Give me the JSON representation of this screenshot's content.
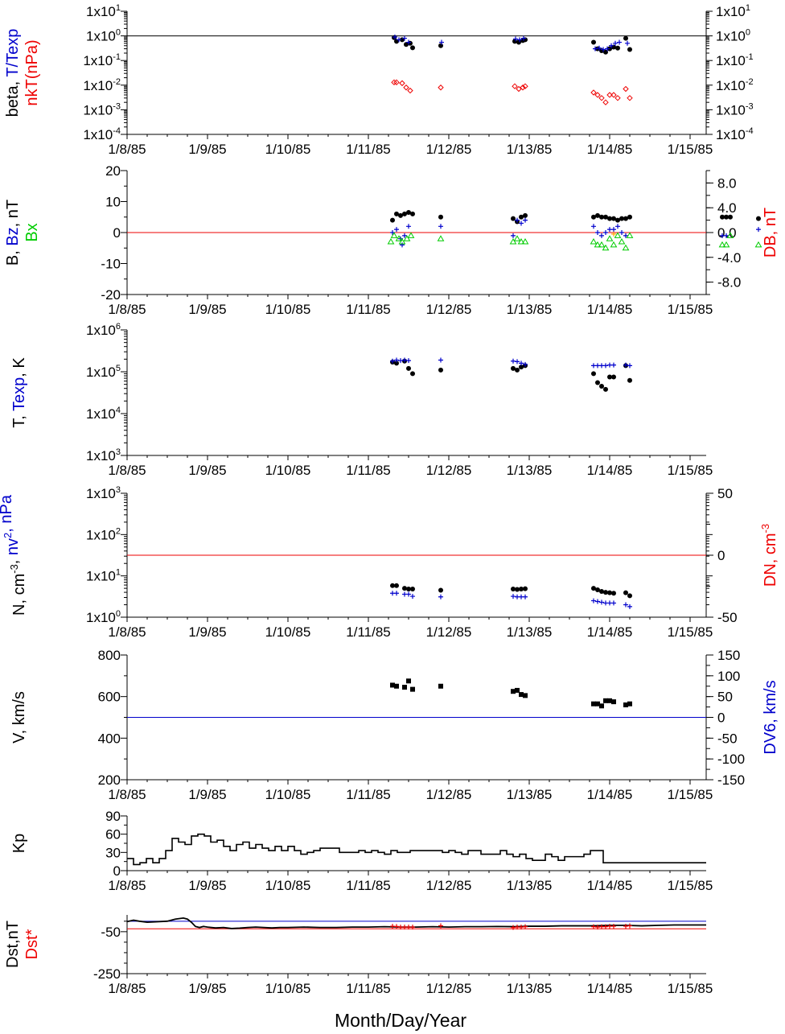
{
  "xaxis": {
    "ticks": [
      "1/8/85",
      "1/9/85",
      "1/10/85",
      "1/11/85",
      "1/12/85",
      "1/13/85",
      "1/14/85",
      "1/15/85"
    ],
    "xlabel": "Month/Day/Year",
    "range_days": [
      0,
      7.2
    ]
  },
  "colors": {
    "black": "#000000",
    "blue": "#0000cc",
    "red": "#ee0000",
    "green": "#00cc00",
    "hline_red": "#ee0000",
    "hline_blue": "#0000cc"
  },
  "chart_data": [
    {
      "id": "beta",
      "type": "scatter",
      "scale": "log",
      "ylim": [
        0.0001,
        10
      ],
      "ylabel_parts": [
        [
          "beta, ",
          "black"
        ],
        [
          "T/Texp",
          "blue"
        ]
      ],
      "ylabel2_parts": [
        [
          "nkT(nPa)",
          "red"
        ]
      ],
      "yticks": [
        "1x10^1",
        "1x10^0",
        "1x10^-1",
        "1x10^-2",
        "1x10^-3",
        "1x10^-4"
      ],
      "right_ticks": [
        "1x10^1",
        "1x10^0",
        "1x10^-1",
        "1x10^-2",
        "1x10^-3",
        "1x10^-4"
      ],
      "hline": {
        "value": 1,
        "color": "black"
      },
      "series": [
        {
          "color": "black",
          "marker": "dot",
          "x": [
            3.32,
            3.35,
            3.42,
            3.47,
            3.52,
            3.55,
            3.9,
            4.82,
            4.87,
            4.92,
            4.95,
            5.8,
            5.85,
            5.9,
            5.95,
            6.0,
            6.05,
            6.1,
            6.2,
            6.25
          ],
          "y": [
            0.85,
            0.6,
            0.7,
            0.45,
            0.5,
            0.33,
            0.4,
            0.6,
            0.55,
            0.65,
            0.7,
            0.55,
            0.3,
            0.25,
            0.22,
            0.3,
            0.35,
            0.32,
            0.8,
            0.28
          ]
        },
        {
          "color": "blue",
          "marker": "plus",
          "x": [
            3.33,
            3.38,
            3.45,
            3.5,
            3.91,
            4.83,
            4.88,
            4.93,
            5.82,
            5.87,
            5.92,
            5.97,
            6.02,
            6.07,
            6.12,
            6.22
          ],
          "y": [
            0.9,
            0.7,
            0.8,
            0.55,
            0.55,
            0.75,
            0.7,
            0.8,
            0.3,
            0.32,
            0.28,
            0.3,
            0.4,
            0.5,
            0.55,
            0.5
          ]
        },
        {
          "color": "red",
          "marker": "diamond",
          "x": [
            3.32,
            3.35,
            3.42,
            3.47,
            3.52,
            3.9,
            4.82,
            4.87,
            4.92,
            4.95,
            5.8,
            5.85,
            5.9,
            5.95,
            6.0,
            6.05,
            6.1,
            6.2,
            6.25
          ],
          "y": [
            0.013,
            0.013,
            0.012,
            0.008,
            0.006,
            0.008,
            0.009,
            0.007,
            0.008,
            0.009,
            0.005,
            0.004,
            0.003,
            0.002,
            0.004,
            0.004,
            0.003,
            0.007,
            0.003
          ]
        }
      ]
    },
    {
      "id": "bfield",
      "type": "scatter",
      "scale": "linear",
      "ylim": [
        -20,
        20
      ],
      "yticks_values": [
        20,
        10,
        0,
        -10,
        -20
      ],
      "ylabel_parts": [
        [
          "B, ",
          "black"
        ],
        [
          "Bz",
          "blue"
        ],
        [
          ", nT",
          "black"
        ]
      ],
      "ylabel2_parts": [
        [
          "Bx",
          "green"
        ]
      ],
      "right_label_parts": [
        [
          "DB, nT",
          "red"
        ]
      ],
      "right_ticks_values": [
        "8.0",
        "4.0",
        "0.0",
        "-4.0",
        "-8.0"
      ],
      "right_ylim": [
        -10,
        10
      ],
      "hline": {
        "value": 0,
        "color": "red"
      },
      "series": [
        {
          "color": "black",
          "marker": "dot",
          "x": [
            3.3,
            3.35,
            3.4,
            3.45,
            3.5,
            3.55,
            3.9,
            4.8,
            4.85,
            4.9,
            4.95,
            5.8,
            5.85,
            5.9,
            5.95,
            6.0,
            6.05,
            6.1,
            6.15,
            6.2,
            6.25,
            7.4,
            7.45,
            7.5,
            7.85
          ],
          "y": [
            4,
            6,
            5.5,
            6,
            6.5,
            6,
            5,
            4.5,
            3.5,
            5,
            5.5,
            5,
            5.5,
            5,
            5,
            4.5,
            4.5,
            4,
            4.5,
            4.5,
            5,
            5,
            5,
            5,
            4.5
          ]
        },
        {
          "color": "blue",
          "marker": "plus",
          "x": [
            3.3,
            3.35,
            3.4,
            3.42,
            3.45,
            3.5,
            3.9,
            4.8,
            4.85,
            4.9,
            4.95,
            5.8,
            5.85,
            5.9,
            5.95,
            6.0,
            6.05,
            6.1,
            6.15,
            6.2,
            7.4,
            7.45,
            7.85
          ],
          "y": [
            0,
            1,
            -2,
            -4,
            -1,
            2,
            2,
            -1,
            4,
            3,
            4,
            2,
            0,
            -1,
            0,
            1,
            1,
            2,
            0,
            -1,
            -1,
            -1,
            1
          ]
        },
        {
          "color": "green",
          "marker": "triangle",
          "x": [
            3.28,
            3.32,
            3.38,
            3.42,
            3.48,
            3.53,
            3.9,
            4.8,
            4.85,
            4.9,
            4.95,
            5.8,
            5.85,
            5.9,
            5.95,
            6.0,
            6.05,
            6.1,
            6.15,
            6.2,
            6.25,
            7.4,
            7.45,
            7.5,
            7.85
          ],
          "y": [
            -3,
            -1,
            -2,
            -3,
            -2,
            -1,
            -2,
            -3,
            -2,
            -3,
            -3,
            -3,
            -4,
            -4,
            -5,
            -2,
            -4,
            -1,
            -3,
            -5,
            -1,
            -4,
            -4,
            -1,
            -4
          ]
        },
        {
          "color": "orange",
          "marker": "plus",
          "x": [
            6.05
          ],
          "y": [
            -0.5
          ]
        }
      ]
    },
    {
      "id": "temp",
      "type": "scatter",
      "scale": "log",
      "ylim": [
        1000,
        1000000
      ],
      "ylabel_parts": [
        [
          "T, ",
          "black"
        ],
        [
          "Texp",
          "blue"
        ],
        [
          ", K",
          "black"
        ]
      ],
      "yticks": [
        "1x10^6",
        "1x10^5",
        "1x10^4",
        "1x10^3"
      ],
      "series": [
        {
          "color": "black",
          "marker": "dot",
          "x": [
            3.3,
            3.35,
            3.45,
            3.5,
            3.55,
            3.9,
            4.8,
            4.85,
            4.9,
            4.95,
            5.8,
            5.85,
            5.9,
            5.95,
            6.0,
            6.05,
            6.2,
            6.25
          ],
          "y": [
            170000,
            160000,
            180000,
            120000,
            90000,
            110000,
            120000,
            110000,
            130000,
            140000,
            90000,
            55000,
            45000,
            38000,
            75000,
            75000,
            140000,
            62000
          ]
        },
        {
          "color": "blue",
          "marker": "plus",
          "x": [
            3.3,
            3.35,
            3.4,
            3.45,
            3.5,
            3.9,
            4.8,
            4.85,
            4.9,
            4.95,
            5.8,
            5.85,
            5.9,
            5.95,
            6.0,
            6.05,
            6.2,
            6.25
          ],
          "y": [
            180000,
            190000,
            185000,
            190000,
            185000,
            190000,
            180000,
            175000,
            160000,
            150000,
            140000,
            140000,
            140000,
            140000,
            145000,
            145000,
            145000,
            140000
          ]
        }
      ]
    },
    {
      "id": "density",
      "type": "scatter",
      "scale": "log",
      "ylim": [
        1,
        1000
      ],
      "ylabel_parts": [
        [
          "N, cm",
          "black"
        ],
        [
          "-3",
          "black",
          "sup"
        ],
        [
          ", ",
          "black"
        ],
        [
          "nv",
          "blue"
        ],
        [
          "2",
          "blue",
          "sup"
        ],
        [
          ", nPa",
          "blue"
        ]
      ],
      "yticks": [
        "1x10^3",
        "1x10^2",
        "1x10^1",
        "1x10^0"
      ],
      "right_label_parts": [
        [
          "DN, cm",
          "red"
        ],
        [
          "-3",
          "red",
          "sup"
        ]
      ],
      "right_ticks_values": [
        "50",
        "0",
        "-50"
      ],
      "right_ylim": [
        -50,
        50
      ],
      "hline": {
        "value": 0,
        "color": "red",
        "axis": "right"
      },
      "series": [
        {
          "color": "black",
          "marker": "dot",
          "x": [
            3.3,
            3.35,
            3.45,
            3.5,
            3.55,
            3.9,
            4.8,
            4.85,
            4.9,
            4.95,
            5.8,
            5.85,
            5.9,
            5.95,
            6.0,
            6.05,
            6.2,
            6.25
          ],
          "y": [
            5.8,
            5.8,
            5,
            4.8,
            4.8,
            4.5,
            4.8,
            4.7,
            4.8,
            4.9,
            5,
            4.6,
            4.2,
            4,
            3.9,
            3.8,
            3.9,
            3.3
          ]
        },
        {
          "color": "blue",
          "marker": "plus",
          "x": [
            3.3,
            3.35,
            3.45,
            3.5,
            3.55,
            3.9,
            4.8,
            4.85,
            4.9,
            4.95,
            5.8,
            5.85,
            5.9,
            5.95,
            6.0,
            6.05,
            6.2,
            6.25
          ],
          "y": [
            3.8,
            3.8,
            3.6,
            3.6,
            3.2,
            3.1,
            3.2,
            3.1,
            3.1,
            3.1,
            2.5,
            2.4,
            2.3,
            2.2,
            2.2,
            2.2,
            2.0,
            1.8
          ]
        }
      ]
    },
    {
      "id": "velocity",
      "type": "scatter",
      "scale": "linear",
      "ylim": [
        200,
        800
      ],
      "yticks_values": [
        800,
        600,
        400,
        200
      ],
      "ylabel_parts": [
        [
          "V, km/s",
          "black"
        ]
      ],
      "right_label_parts": [
        [
          "DV6, km/s",
          "blue"
        ]
      ],
      "right_ticks_values": [
        "150",
        "100",
        "50",
        "0",
        "-50",
        "-100",
        "-150"
      ],
      "right_ylim": [
        -150,
        150
      ],
      "hline": {
        "value": 0,
        "color": "blue",
        "axis": "right"
      },
      "series": [
        {
          "color": "black",
          "marker": "square",
          "x": [
            3.3,
            3.35,
            3.45,
            3.5,
            3.55,
            3.9,
            4.8,
            4.85,
            4.9,
            4.95,
            5.8,
            5.85,
            5.9,
            5.95,
            6.0,
            6.05,
            6.2,
            6.25
          ],
          "y": [
            655,
            650,
            645,
            675,
            635,
            650,
            625,
            630,
            610,
            605,
            565,
            565,
            555,
            580,
            580,
            575,
            560,
            565
          ]
        }
      ]
    },
    {
      "id": "kp",
      "type": "step",
      "scale": "linear",
      "ylim": [
        0,
        90
      ],
      "yticks_values": [
        90,
        60,
        30,
        0
      ],
      "ylabel_parts": [
        [
          "Kp",
          "black"
        ]
      ],
      "series": [
        {
          "color": "black",
          "values": [
            20,
            10,
            13,
            20,
            13,
            20,
            33,
            53,
            47,
            43,
            57,
            60,
            57,
            47,
            50,
            40,
            33,
            43,
            47,
            37,
            43,
            37,
            33,
            40,
            33,
            40,
            33,
            27,
            30,
            33,
            37,
            37,
            37,
            30,
            30,
            30,
            33,
            30,
            33,
            30,
            27,
            33,
            30,
            30,
            33,
            33,
            33,
            33,
            33,
            30,
            33,
            30,
            27,
            33,
            33,
            27,
            27,
            27,
            33,
            27,
            23,
            27,
            20,
            17,
            17,
            27,
            23,
            17,
            23,
            23,
            23,
            27,
            33,
            33,
            13,
            13,
            13,
            13,
            13,
            13,
            13,
            13,
            13,
            13,
            13,
            13,
            13,
            13,
            13,
            13
          ]
        }
      ]
    },
    {
      "id": "dst",
      "type": "line",
      "scale": "linear",
      "ylim": [
        -250,
        30
      ],
      "yticks_values": [
        -50,
        -250
      ],
      "ylabel_parts": [
        [
          "Dst,nT",
          "black"
        ]
      ],
      "ylabel2_parts": [
        [
          "Dst*",
          "red"
        ]
      ],
      "hline_blue": 0,
      "hline_red": -36,
      "series": [
        {
          "color": "black",
          "name": "Dst",
          "x": [
            0,
            0.08,
            0.15,
            0.25,
            0.35,
            0.5,
            0.6,
            0.7,
            0.75,
            0.8,
            0.85,
            0.9,
            0.95,
            1.0,
            1.1,
            1.2,
            1.3,
            1.4,
            1.5,
            1.6,
            1.7,
            1.8,
            1.9,
            2.0,
            2.2,
            2.4,
            2.6,
            2.8,
            3.0,
            3.2,
            3.4,
            3.6,
            3.8,
            4.0,
            4.2,
            4.4,
            4.6,
            4.8,
            5.0,
            5.2,
            5.4,
            5.6,
            5.8,
            6.0,
            6.2,
            6.4,
            6.6,
            6.8,
            7.0,
            7.2
          ],
          "y": [
            -2,
            5,
            0,
            -5,
            -3,
            0,
            10,
            15,
            10,
            -5,
            -25,
            -30,
            -25,
            -28,
            -32,
            -30,
            -35,
            -33,
            -30,
            -28,
            -30,
            -32,
            -30,
            -30,
            -28,
            -30,
            -30,
            -28,
            -28,
            -26,
            -28,
            -28,
            -26,
            -28,
            -26,
            -26,
            -25,
            -26,
            -24,
            -24,
            -22,
            -22,
            -22,
            -20,
            -20,
            -22,
            -20,
            -18,
            -18,
            -18
          ]
        },
        {
          "color": "red",
          "name": "Dst*",
          "marker": "plus",
          "x": [
            3.3,
            3.35,
            3.4,
            3.45,
            3.5,
            3.55,
            3.9,
            4.8,
            4.85,
            4.9,
            4.95,
            5.8,
            5.85,
            5.9,
            5.95,
            6.0,
            6.05,
            6.2,
            6.25
          ],
          "y": [
            -24,
            -25,
            -28,
            -28,
            -28,
            -28,
            -22,
            -30,
            -28,
            -28,
            -26,
            -26,
            -28,
            -26,
            -26,
            -24,
            -24,
            -24,
            -22
          ]
        }
      ]
    }
  ]
}
